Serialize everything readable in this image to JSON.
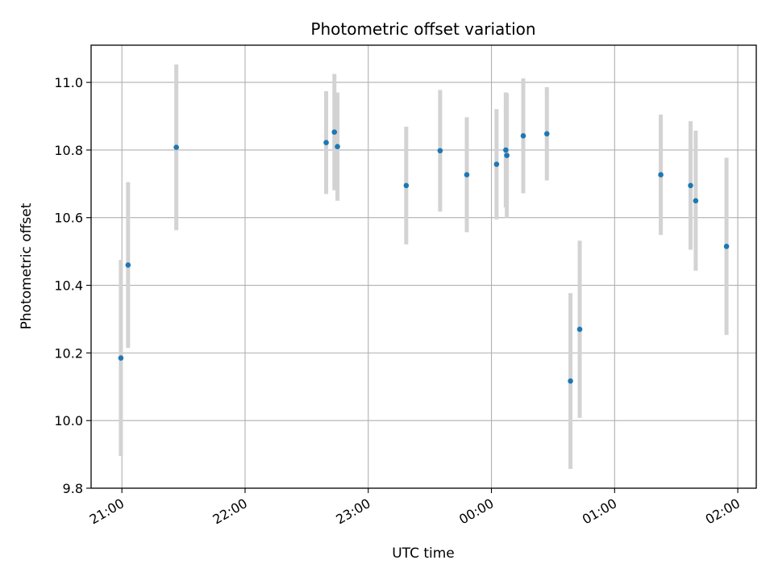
{
  "chart_data": {
    "type": "scatter",
    "title": "Photometric offset variation",
    "xlabel": "UTC time",
    "ylabel": "Photometric offset",
    "x_axis": "time",
    "xlim": [
      "20:45",
      "02:09"
    ],
    "ylim": [
      9.8,
      11.11
    ],
    "xticks": [
      "21:00",
      "22:00",
      "23:00",
      "00:00",
      "01:00",
      "02:00"
    ],
    "yticks": [
      "9.8",
      "10.0",
      "10.2",
      "10.4",
      "10.6",
      "10.8",
      "11.0"
    ],
    "grid": true,
    "colors": {
      "point": "#1f77b4",
      "errorbar": "#d3d3d3",
      "grid": "#b0b0b0"
    },
    "series": [
      {
        "points": [
          {
            "x": "20:59:30",
            "y": 10.185,
            "err": 0.29
          },
          {
            "x": "21:03:00",
            "y": 10.46,
            "err": 0.245
          },
          {
            "x": "21:26:30",
            "y": 10.808,
            "err": 0.245
          },
          {
            "x": "22:39:30",
            "y": 10.822,
            "err": 0.152
          },
          {
            "x": "22:43:30",
            "y": 10.853,
            "err": 0.172
          },
          {
            "x": "22:45:00",
            "y": 10.81,
            "err": 0.16
          },
          {
            "x": "23:18:30",
            "y": 10.695,
            "err": 0.174
          },
          {
            "x": "23:35:00",
            "y": 10.798,
            "err": 0.18
          },
          {
            "x": "23:48:00",
            "y": 10.727,
            "err": 0.17
          },
          {
            "x": "00:02:30",
            "y": 10.758,
            "err": 0.163
          },
          {
            "x": "00:07:00",
            "y": 10.8,
            "err": 0.17
          },
          {
            "x": "00:07:30",
            "y": 10.784,
            "err": 0.184
          },
          {
            "x": "00:15:30",
            "y": 10.842,
            "err": 0.17
          },
          {
            "x": "00:27:00",
            "y": 10.848,
            "err": 0.138
          },
          {
            "x": "00:38:30",
            "y": 10.117,
            "err": 0.26
          },
          {
            "x": "00:43:00",
            "y": 10.27,
            "err": 0.262
          },
          {
            "x": "01:22:30",
            "y": 10.727,
            "err": 0.178
          },
          {
            "x": "01:37:00",
            "y": 10.695,
            "err": 0.19
          },
          {
            "x": "01:39:30",
            "y": 10.65,
            "err": 0.207
          },
          {
            "x": "01:54:30",
            "y": 10.515,
            "err": 0.262
          }
        ]
      }
    ]
  }
}
